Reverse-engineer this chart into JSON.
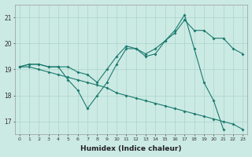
{
  "xlabel": "Humidex (Indice chaleur)",
  "xlim": [
    -0.5,
    23.5
  ],
  "ylim": [
    16.5,
    21.5
  ],
  "yticks": [
    17,
    18,
    19,
    20,
    21
  ],
  "xticks": [
    0,
    1,
    2,
    3,
    4,
    5,
    6,
    7,
    8,
    9,
    10,
    11,
    12,
    13,
    14,
    15,
    16,
    17,
    18,
    19,
    20,
    21,
    22,
    23
  ],
  "bg_color": "#cceae4",
  "grid_color": "#aad4cc",
  "line_color": "#1a7a6e",
  "series1_x": [
    0,
    1,
    2,
    3,
    4,
    5,
    6,
    7,
    8,
    9,
    10,
    11,
    12,
    13,
    14,
    15,
    16,
    17,
    18,
    19,
    20,
    21,
    22,
    23
  ],
  "series1_y": [
    19.1,
    19.2,
    19.2,
    19.1,
    19.1,
    19.1,
    18.9,
    18.8,
    18.5,
    19.0,
    19.5,
    19.9,
    19.8,
    19.6,
    19.8,
    20.1,
    20.4,
    20.9,
    20.5,
    20.5,
    20.2,
    20.2,
    19.8,
    19.6
  ],
  "series2_x": [
    0,
    1,
    2,
    3,
    4,
    5,
    6,
    7,
    8,
    9,
    10,
    11,
    12,
    13,
    14,
    15,
    16,
    17,
    18,
    19,
    20,
    21,
    22,
    23
  ],
  "series2_y": [
    19.1,
    19.2,
    19.2,
    19.1,
    19.1,
    18.6,
    18.2,
    17.5,
    18.0,
    18.5,
    19.2,
    19.8,
    19.8,
    19.5,
    19.6,
    20.1,
    20.5,
    21.1,
    19.8,
    18.5,
    17.8,
    16.7,
    null,
    null
  ],
  "series2_skip": true,
  "series3_x": [
    0,
    1,
    2,
    3,
    4,
    5,
    6,
    7,
    8,
    9,
    10,
    11,
    12,
    13,
    14,
    15,
    16,
    17,
    18,
    19,
    20,
    21,
    22,
    23
  ],
  "series3_y": [
    19.1,
    19.1,
    19.0,
    18.9,
    18.8,
    18.7,
    18.6,
    18.5,
    18.4,
    18.3,
    18.1,
    18.0,
    17.9,
    17.8,
    17.7,
    17.6,
    17.5,
    17.4,
    17.3,
    17.2,
    17.1,
    17.0,
    16.9,
    16.7
  ]
}
